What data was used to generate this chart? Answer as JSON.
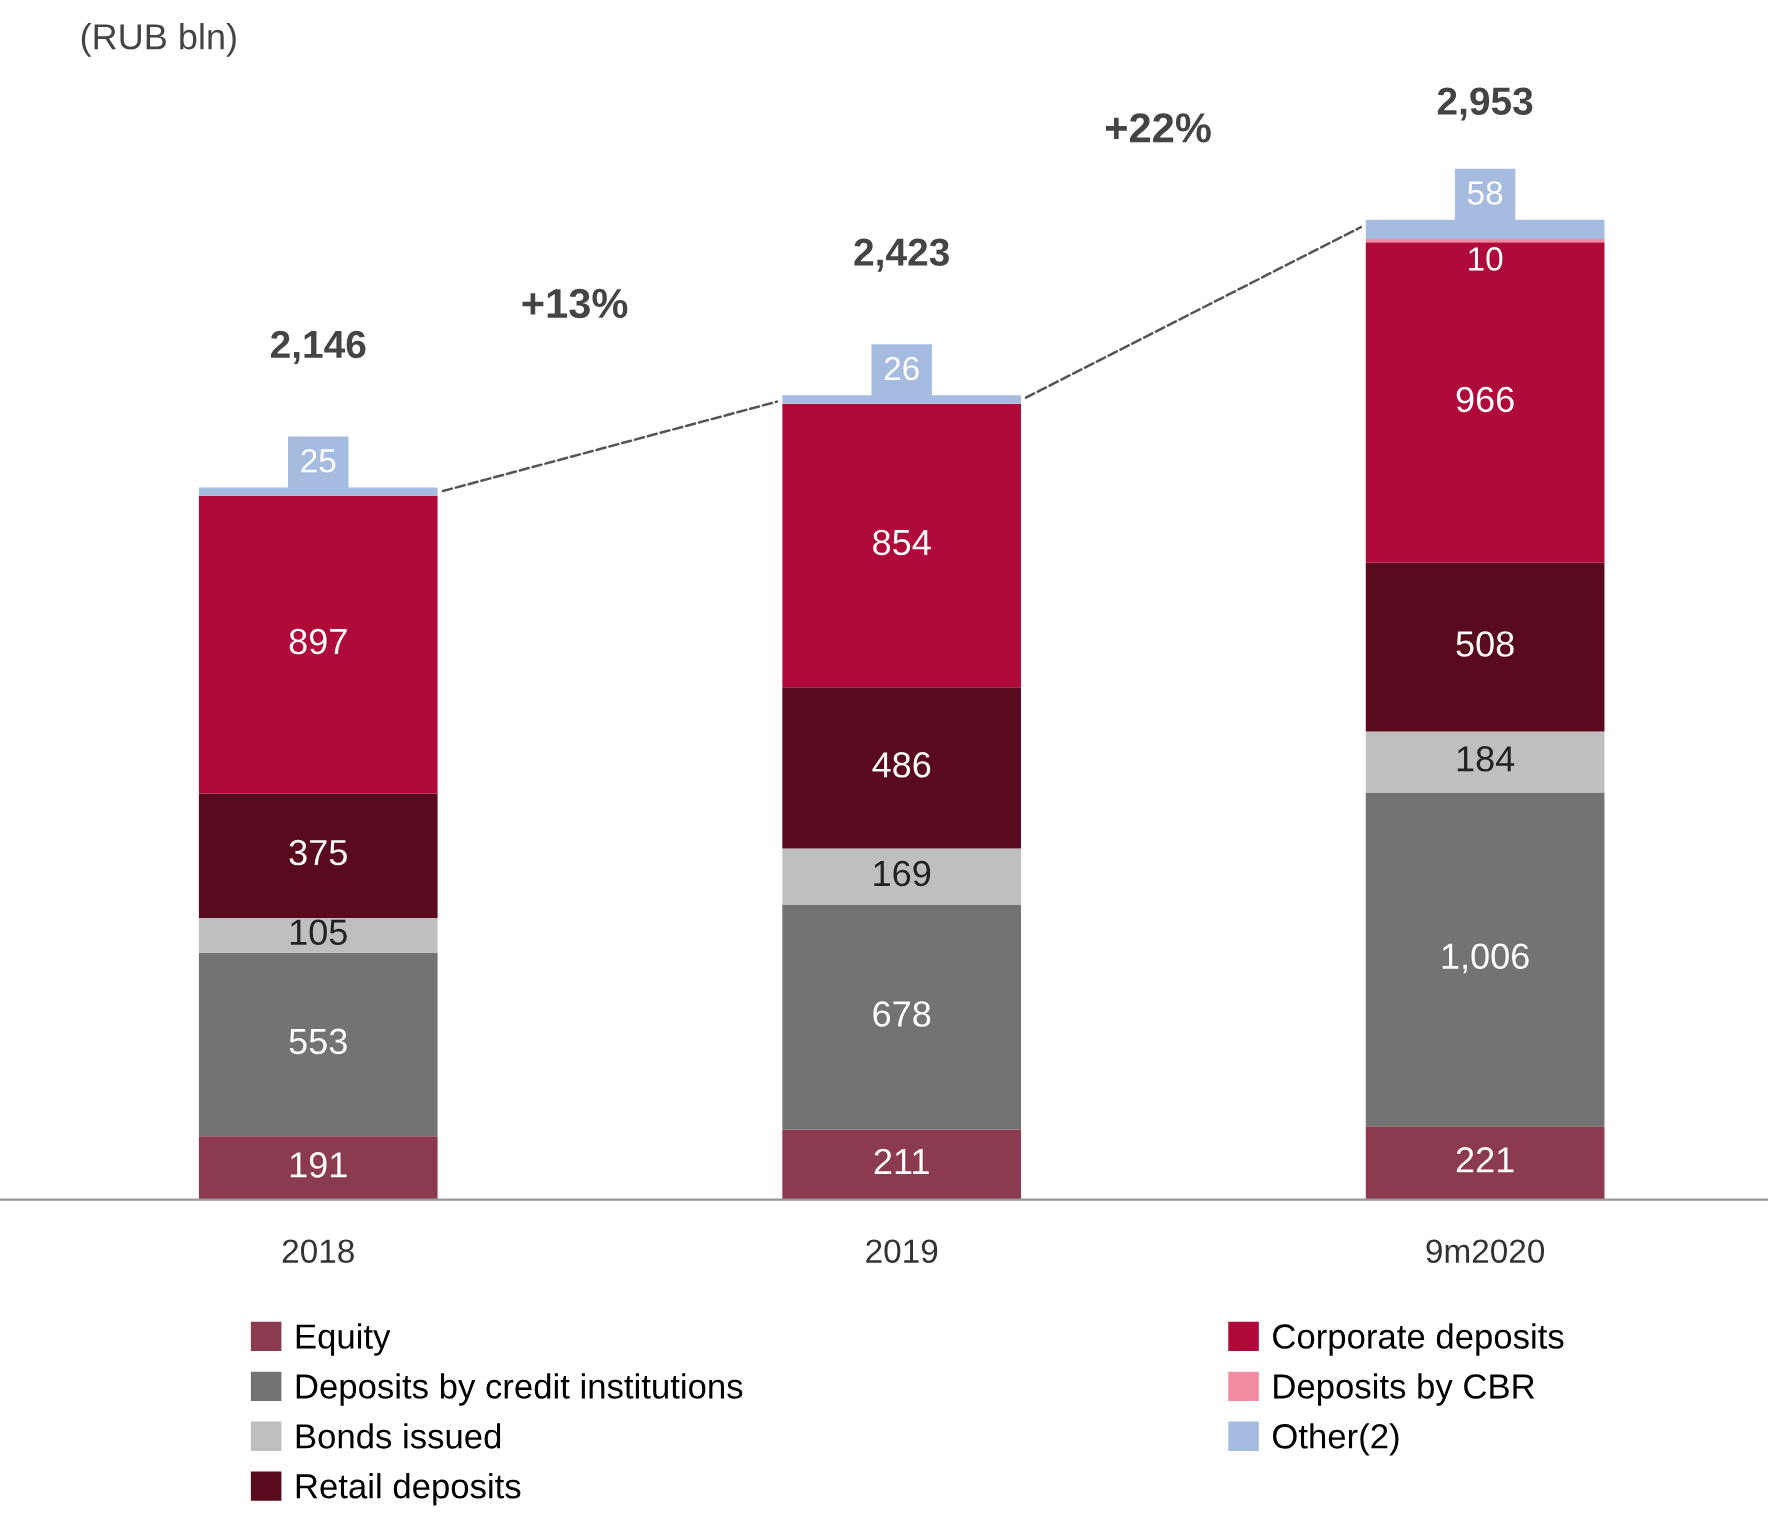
{
  "chart_data": {
    "type": "bar",
    "stacked": true,
    "categories": [
      "2018",
      "2019",
      "9m2020"
    ],
    "series": [
      {
        "name": "Equity",
        "color": "#8b3a4f",
        "values": [
          191,
          211,
          221
        ],
        "value_labels": [
          "191",
          "211",
          "221"
        ]
      },
      {
        "name": "Deposits by credit institutions",
        "color": "#737373",
        "values": [
          553,
          678,
          1006
        ],
        "value_labels": [
          "553",
          "678",
          "1,006"
        ]
      },
      {
        "name": "Bonds issued",
        "color": "#bfbfbf",
        "values": [
          105,
          169,
          184
        ],
        "value_labels": [
          "105",
          "169",
          "184"
        ]
      },
      {
        "name": "Retail deposits",
        "color": "#5a0a1e",
        "values": [
          375,
          486,
          508
        ],
        "value_labels": [
          "375",
          "486",
          "508"
        ]
      },
      {
        "name": "Corporate deposits",
        "color": "#b00a3a",
        "values": [
          897,
          854,
          966
        ],
        "value_labels": [
          "897",
          "854",
          "966"
        ]
      },
      {
        "name": "Deposits by CBR",
        "color": "#f28ca0",
        "values": [
          null,
          null,
          10
        ],
        "value_labels": [
          null,
          null,
          "10"
        ]
      },
      {
        "name": "Other(2)",
        "color": "#a6bbe0",
        "values": [
          25,
          26,
          58
        ],
        "value_labels": [
          "25",
          "26",
          "58"
        ]
      }
    ],
    "totals": [
      "2,146",
      "2,423",
      "2,953"
    ],
    "annotations": [
      "(RUB bln)",
      "+13%",
      "+22%"
    ],
    "legend": "bottom",
    "grid": false
  }
}
